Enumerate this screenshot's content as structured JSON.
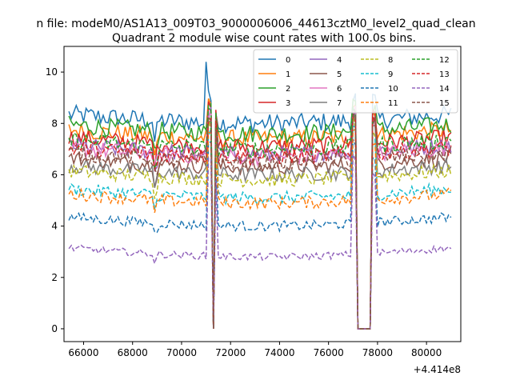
{
  "suptitle": "n file: modeM0/AS1A13_009T03_9000006006_44613cztM0_level2_quad_clean",
  "chart_data": {
    "type": "line",
    "title": "Quadrant 2 module wise count rates with 100.0s bins.",
    "xlabel": "",
    "ylabel": "",
    "x_offset_label": "+4.414e8",
    "xlim": [
      65200,
      81400
    ],
    "ylim": [
      -0.5,
      11.0
    ],
    "x_ticks": [
      66000,
      68000,
      70000,
      72000,
      74000,
      76000,
      78000,
      80000
    ],
    "y_ticks": [
      0,
      2,
      4,
      6,
      8,
      10
    ],
    "grid": false,
    "legend_placement": "top-right",
    "x_start": 65400,
    "x_end": 81000,
    "bin": 100,
    "gaps": [
      [
        71200,
        71340
      ],
      [
        77150,
        77800
      ]
    ],
    "dips": [
      [
        68900,
        -0.6
      ],
      [
        69000,
        -0.3
      ]
    ],
    "peak_x": 71000,
    "peak_values_mod0": 10.4,
    "series": [
      {
        "name": "0",
        "level": 8.35,
        "color": "#1f77b4",
        "style": "solid"
      },
      {
        "name": "1",
        "level": 7.75,
        "color": "#ff7f0e",
        "style": "solid"
      },
      {
        "name": "2",
        "level": 7.95,
        "color": "#2ca02c",
        "style": "solid"
      },
      {
        "name": "3",
        "level": 7.45,
        "color": "#d62728",
        "style": "solid"
      },
      {
        "name": "4",
        "level": 7.15,
        "color": "#9467bd",
        "style": "solid"
      },
      {
        "name": "5",
        "level": 6.65,
        "color": "#8c564b",
        "style": "solid"
      },
      {
        "name": "6",
        "level": 7.05,
        "color": "#e377c2",
        "style": "solid"
      },
      {
        "name": "7",
        "level": 6.35,
        "color": "#7f7f7f",
        "style": "solid"
      },
      {
        "name": "8",
        "level": 6.15,
        "color": "#bcbd22",
        "style": "dashed"
      },
      {
        "name": "9",
        "level": 5.45,
        "color": "#17becf",
        "style": "dashed"
      },
      {
        "name": "10",
        "level": 4.35,
        "color": "#1f77b4",
        "style": "dashed"
      },
      {
        "name": "11",
        "level": 5.25,
        "color": "#ff7f0e",
        "style": "dashed"
      },
      {
        "name": "12",
        "level": 7.35,
        "color": "#2ca02c",
        "style": "dashed"
      },
      {
        "name": "13",
        "level": 7.05,
        "color": "#d62728",
        "style": "dashed"
      },
      {
        "name": "14",
        "level": 3.15,
        "color": "#9467bd",
        "style": "dashed"
      },
      {
        "name": "15",
        "level": 6.85,
        "color": "#8c564b",
        "style": "dashed"
      }
    ]
  }
}
